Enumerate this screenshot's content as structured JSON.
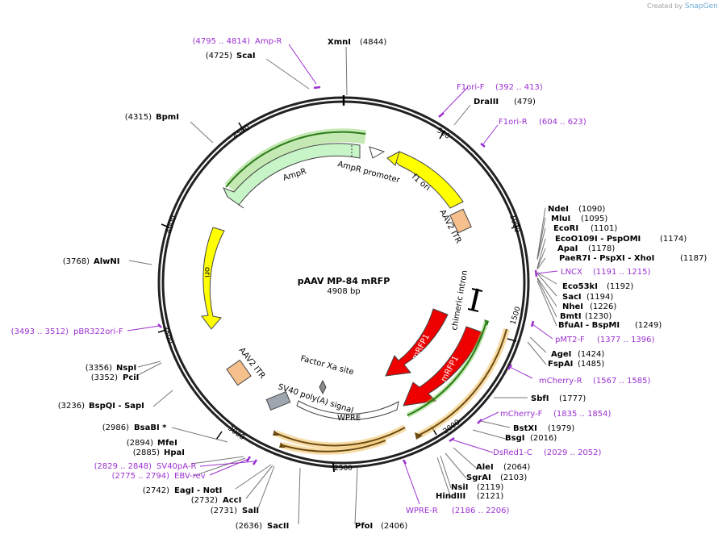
{
  "credit": {
    "prefix": "Created by",
    "brand": "SnapGene"
  },
  "plasmid": {
    "name": "pAAV MP-84 mRFP",
    "size_label": "4908 bp"
  },
  "ticks": [
    "500",
    "1000",
    "1500",
    "2000",
    "2500",
    "3000",
    "3500",
    "4000",
    "4500"
  ],
  "sites": [
    {
      "name": "XmnI",
      "pos": "(4844)"
    },
    {
      "name": "ScaI",
      "pos": "(4725)"
    },
    {
      "name": "BpmI",
      "pos": "(4315)"
    },
    {
      "name": "DraIII",
      "pos": "(479)"
    },
    {
      "name": "AlwNI",
      "pos": "(3768)"
    },
    {
      "name": "NdeI",
      "pos": "(1090)"
    },
    {
      "name": "MluI",
      "pos": "(1095)"
    },
    {
      "name": "EcoRI",
      "pos": "(1101)"
    },
    {
      "name": "EcoO109I - PspOMI",
      "pos": "(1174)"
    },
    {
      "name": "ApaI",
      "pos": "(1178)"
    },
    {
      "name": "PaeR7I - PspXI - XhoI",
      "pos": "(1187)"
    },
    {
      "name": "Eco53kI",
      "pos": "(1192)"
    },
    {
      "name": "SacI",
      "pos": "(1194)"
    },
    {
      "name": "NheI",
      "pos": "(1226)"
    },
    {
      "name": "BmtI",
      "pos": "(1230)"
    },
    {
      "name": "BfuAI - BspMI",
      "pos": "(1249)"
    },
    {
      "name": "AgeI",
      "pos": "(1424)"
    },
    {
      "name": "FspAI",
      "pos": "(1485)"
    },
    {
      "name": "SbfI",
      "pos": "(1777)"
    },
    {
      "name": "BstXI",
      "pos": "(1979)"
    },
    {
      "name": "BsgI",
      "pos": "(2016)"
    },
    {
      "name": "AleI",
      "pos": "(2064)"
    },
    {
      "name": "SgrAI",
      "pos": "(2103)"
    },
    {
      "name": "NsiI",
      "pos": "(2119)"
    },
    {
      "name": "HindIII",
      "pos": "(2121)"
    },
    {
      "name": "PfoI",
      "pos": "(2406)"
    },
    {
      "name": "SacII",
      "pos": "(2636)"
    },
    {
      "name": "SalI",
      "pos": "(2731)"
    },
    {
      "name": "AccI",
      "pos": "(2732)"
    },
    {
      "name": "EagI - NotI",
      "pos": "(2742)"
    },
    {
      "name": "HpaI",
      "pos": "(2885)"
    },
    {
      "name": "MfeI",
      "pos": "(2894)"
    },
    {
      "name": "BsaBI *",
      "pos": "(2986)"
    },
    {
      "name": "BspQI - SapI",
      "pos": "(3236)"
    },
    {
      "name": "PciI",
      "pos": "(3352)"
    },
    {
      "name": "NspI",
      "pos": "(3356)"
    }
  ],
  "primers": [
    {
      "name": "Amp-R",
      "range": "(4795 .. 4814)"
    },
    {
      "name": "F1ori-F",
      "range": "(392 .. 413)"
    },
    {
      "name": "F1ori-R",
      "range": "(604 .. 623)"
    },
    {
      "name": "LNCX",
      "range": "(1191 .. 1215)"
    },
    {
      "name": "pMT2-F",
      "range": "(1377 .. 1396)"
    },
    {
      "name": "mCherry-R",
      "range": "(1567 .. 1585)"
    },
    {
      "name": "mCherry-F",
      "range": "(1835 .. 1854)"
    },
    {
      "name": "DsRed1-C",
      "range": "(2029 .. 2052)"
    },
    {
      "name": "WPRE-R",
      "range": "(2186 .. 2206)"
    },
    {
      "name": "EBV-rev",
      "range": "(2775 .. 2794)"
    },
    {
      "name": "SV40pA-R",
      "range": "(2829 .. 2848)"
    },
    {
      "name": "pBR322ori-F",
      "range": "(3493 .. 3512)"
    }
  ],
  "features": {
    "f1_ori": "f1 ori",
    "ampr_promoter": "AmpR promoter",
    "ampr": "AmpR",
    "aav2_itr_top": "AAV2 ITR",
    "ori": "ori",
    "chimeric_intron": "chimeric intron",
    "mrfp1_a": "mRFP1",
    "mrfp1_b": "mRFP1",
    "factor_xa": "Factor Xa site",
    "sv40_polya": "SV40 poly(A) signal",
    "wpre": "WPRE",
    "aav2_itr_bottom": "AAV2 ITR"
  },
  "colors": {
    "ring": "#222222",
    "f1_ori": "#ffff00",
    "ampr": "#c8f5c8",
    "ori": "#ffff00",
    "itr": "#f6c08c",
    "mrfp": "#ee0000",
    "primer": "#9b30d0",
    "sv40": "#9ea6b0",
    "wpre": "#ffffff"
  }
}
